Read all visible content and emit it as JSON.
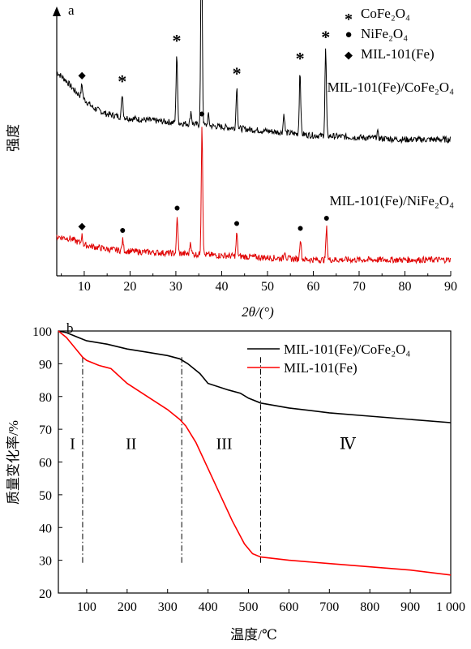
{
  "chart_data": [
    {
      "panel_label": "a",
      "type": "line",
      "xlabel": "2θ/(°)",
      "ylabel": "强度",
      "xlim": [
        4,
        90
      ],
      "x_ticks": [
        "10",
        "20",
        "30",
        "40",
        "50",
        "60",
        "70",
        "80",
        "90"
      ],
      "legend": [
        {
          "symbol": "*",
          "text": "CoFe₂O₄"
        },
        {
          "symbol": "●",
          "text": "NiFe₂O₄"
        },
        {
          "symbol": "◆",
          "text": "MIL-101(Fe)"
        }
      ],
      "series": [
        {
          "name": "MIL-101(Fe)/CoFe₂O₄",
          "color": "#000000",
          "offset": 0.58,
          "baseline_points": [
            [
              4,
              0.34
            ],
            [
              6,
              0.3
            ],
            [
              8,
              0.25
            ],
            [
              10,
              0.21
            ],
            [
              12,
              0.17
            ],
            [
              15,
              0.14
            ],
            [
              20,
              0.12
            ],
            [
              25,
              0.11
            ],
            [
              30,
              0.1
            ],
            [
              40,
              0.08
            ],
            [
              50,
              0.06
            ],
            [
              60,
              0.04
            ],
            [
              70,
              0.03
            ],
            [
              80,
              0.02
            ],
            [
              90,
              0.02
            ]
          ],
          "peaks": [
            {
              "pos": 9.5,
              "height": 0.06,
              "marker": "◆"
            },
            {
              "pos": 18.3,
              "height": 0.11,
              "marker": "*"
            },
            {
              "pos": 30.2,
              "height": 0.33,
              "marker": "*"
            },
            {
              "pos": 33.3,
              "height": 0.06,
              "marker": ""
            },
            {
              "pos": 35.6,
              "height": 1.05,
              "marker": "*"
            },
            {
              "pos": 37.1,
              "height": 0.05,
              "marker": ""
            },
            {
              "pos": 43.3,
              "height": 0.2,
              "marker": "*"
            },
            {
              "pos": 53.6,
              "height": 0.09,
              "marker": ""
            },
            {
              "pos": 57.1,
              "height": 0.3,
              "marker": "*"
            },
            {
              "pos": 62.7,
              "height": 0.41,
              "marker": "*"
            },
            {
              "pos": 74.0,
              "height": 0.03,
              "marker": ""
            }
          ]
        },
        {
          "name": "MIL-101(Fe)/NiFe₂O₄",
          "color": "#e00000",
          "offset": 0.0,
          "baseline_points": [
            [
              4,
              0.14
            ],
            [
              7,
              0.13
            ],
            [
              10,
              0.1
            ],
            [
              15,
              0.08
            ],
            [
              20,
              0.07
            ],
            [
              30,
              0.06
            ],
            [
              40,
              0.05
            ],
            [
              50,
              0.04
            ],
            [
              60,
              0.03
            ],
            [
              70,
              0.03
            ],
            [
              80,
              0.03
            ],
            [
              90,
              0.03
            ]
          ],
          "peaks": [
            {
              "pos": 9.5,
              "height": 0.04,
              "marker": "◆"
            },
            {
              "pos": 18.4,
              "height": 0.05,
              "marker": "●"
            },
            {
              "pos": 30.3,
              "height": 0.17,
              "marker": "●"
            },
            {
              "pos": 33.2,
              "height": 0.06,
              "marker": ""
            },
            {
              "pos": 35.7,
              "height": 0.62,
              "marker": "●"
            },
            {
              "pos": 43.3,
              "height": 0.11,
              "marker": "●"
            },
            {
              "pos": 53.8,
              "height": 0.04,
              "marker": ""
            },
            {
              "pos": 57.2,
              "height": 0.1,
              "marker": "●"
            },
            {
              "pos": 62.9,
              "height": 0.15,
              "marker": "●"
            }
          ]
        }
      ]
    },
    {
      "panel_label": "b",
      "type": "line",
      "xlabel": "温度/℃",
      "ylabel": "质量变化率/%",
      "xlim": [
        30,
        1000
      ],
      "ylim": [
        20,
        100
      ],
      "x_ticks": [
        100,
        200,
        300,
        400,
        500,
        600,
        700,
        800,
        900,
        1000
      ],
      "x_tick_labels": [
        "100",
        "200",
        "300",
        "400",
        "500",
        "600",
        "700",
        "800",
        "900",
        "1 000"
      ],
      "y_ticks": [
        20,
        30,
        40,
        50,
        60,
        70,
        80,
        90,
        100
      ],
      "stage_dividers": [
        90,
        335,
        530
      ],
      "stages": [
        {
          "label": "I",
          "x": 65
        },
        {
          "label": "II",
          "x": 210
        },
        {
          "label": "III",
          "x": 440
        },
        {
          "label": "Ⅳ",
          "x": 745
        }
      ],
      "series": [
        {
          "name": "MIL-101(Fe)/CoFe₂O₄",
          "color": "#000000",
          "x": [
            30,
            50,
            80,
            100,
            150,
            200,
            250,
            300,
            330,
            350,
            380,
            400,
            450,
            480,
            500,
            530,
            600,
            700,
            800,
            900,
            1000
          ],
          "y": [
            100,
            99.5,
            98,
            97,
            96,
            94.5,
            93.5,
            92.5,
            91.5,
            90,
            87,
            84,
            82,
            81,
            79.5,
            78,
            76.5,
            75,
            74,
            73,
            72
          ]
        },
        {
          "name": "MIL-101(Fe)",
          "color": "#ff0000",
          "x": [
            30,
            50,
            70,
            90,
            100,
            130,
            160,
            200,
            250,
            300,
            330,
            345,
            370,
            400,
            430,
            460,
            490,
            510,
            530,
            600,
            700,
            800,
            900,
            1000
          ],
          "y": [
            100,
            98,
            95,
            92,
            91,
            89.5,
            88.5,
            84,
            80,
            76,
            73,
            71,
            66,
            58,
            50,
            42,
            35,
            32,
            31,
            30,
            29,
            28,
            27,
            25.5
          ]
        }
      ]
    }
  ]
}
